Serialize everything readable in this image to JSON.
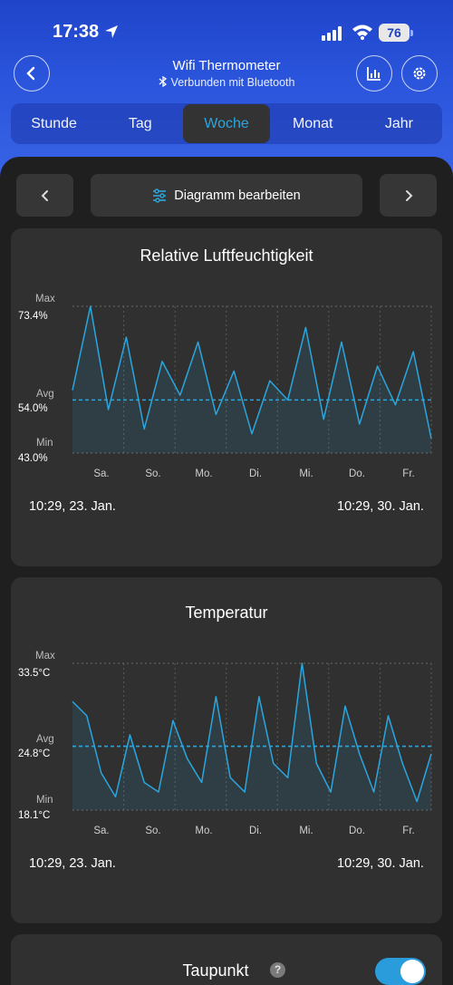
{
  "status_bar": {
    "time": "17:38",
    "battery": "76"
  },
  "header": {
    "title": "Wifi Thermometer",
    "subtitle": "Verbunden mit Bluetooth",
    "accent_color": "#2aa6de"
  },
  "tabs": [
    {
      "label": "Stunde",
      "active": false
    },
    {
      "label": "Tag",
      "active": false
    },
    {
      "label": "Woche",
      "active": true
    },
    {
      "label": "Monat",
      "active": false
    },
    {
      "label": "Jahr",
      "active": false
    }
  ],
  "nav": {
    "edit_label": "Diagramm bearbeiten"
  },
  "humidity_card": {
    "title": "Relative Luftfeuchtigkeit",
    "max_label": "Max",
    "max_value": "73.4%",
    "avg_label": "Avg",
    "avg_value": "54.0%",
    "min_label": "Min",
    "min_value": "43.0%",
    "start": "10:29,  23. Jan.",
    "end": "10:29,  30. Jan."
  },
  "temperature_card": {
    "title": "Temperatur",
    "max_label": "Max",
    "max_value": "33.5°C",
    "avg_label": "Avg",
    "avg_value": "24.8°C",
    "min_label": "Min",
    "min_value": "18.1°C",
    "start": "10:29,  23. Jan.",
    "end": "10:29,  30. Jan."
  },
  "dewpoint_card": {
    "title": "Taupunkt",
    "help": "?",
    "toggle_on": true
  },
  "days": [
    "Sa.",
    "So.",
    "Mo.",
    "Di.",
    "Mi.",
    "Do.",
    "Fr."
  ],
  "chart_data": [
    {
      "type": "line",
      "title": "Relative Luftfeuchtigkeit",
      "x": [
        0,
        0.05,
        0.1,
        0.15,
        0.2,
        0.25,
        0.3,
        0.35,
        0.4,
        0.45,
        0.5,
        0.55,
        0.6,
        0.65,
        0.7,
        0.75,
        0.8,
        0.85,
        0.9,
        0.95,
        1
      ],
      "values": [
        56,
        73.4,
        52,
        67,
        48,
        62,
        55,
        66,
        51,
        60,
        47,
        58,
        54,
        69,
        50,
        66,
        49,
        61,
        53,
        64,
        46
      ],
      "ylim": [
        43.0,
        73.4
      ],
      "avg": 54.0,
      "categories": [
        "Sa.",
        "So.",
        "Mo.",
        "Di.",
        "Mi.",
        "Do.",
        "Fr."
      ]
    },
    {
      "type": "line",
      "title": "Temperatur",
      "x": [
        0,
        0.04,
        0.08,
        0.12,
        0.16,
        0.2,
        0.24,
        0.28,
        0.32,
        0.36,
        0.4,
        0.44,
        0.48,
        0.52,
        0.56,
        0.6,
        0.64,
        0.68,
        0.72,
        0.76,
        0.8,
        0.84,
        0.88,
        0.92,
        0.96,
        1
      ],
      "values": [
        29.5,
        28,
        22,
        19.5,
        26,
        21,
        20,
        27.5,
        23.5,
        21,
        30,
        21.5,
        20,
        30,
        23,
        21.5,
        33.5,
        23,
        20,
        29,
        24,
        20,
        28,
        23,
        19,
        24
      ],
      "ylim": [
        18.1,
        33.5
      ],
      "avg": 24.8,
      "categories": [
        "Sa.",
        "So.",
        "Mo.",
        "Di.",
        "Mi.",
        "Do.",
        "Fr."
      ]
    }
  ]
}
